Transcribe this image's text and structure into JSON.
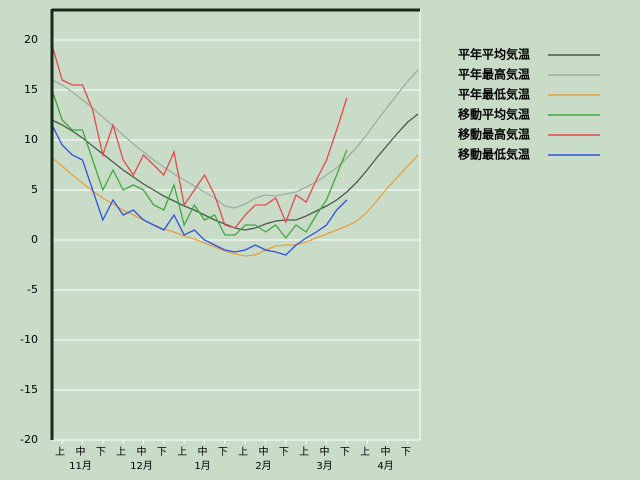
{
  "chart_data": {
    "type": "line",
    "x": [
      0,
      0.5,
      1,
      1.5,
      2,
      2.5,
      3,
      3.5,
      4,
      4.5,
      5,
      5.5,
      6,
      6.5,
      7,
      7.5,
      8,
      8.5,
      9,
      9.5,
      10,
      10.5,
      11,
      11.5,
      12,
      12.5,
      13,
      13.5,
      14,
      14.5,
      15,
      15.5,
      16,
      16.5,
      17,
      17.5,
      18
    ],
    "xlim": [
      0,
      18
    ],
    "xticks": [
      {
        "value": 0.5,
        "label": "上"
      },
      {
        "value": 1.5,
        "label": "中"
      },
      {
        "value": 2.5,
        "label": "下"
      },
      {
        "value": 3.5,
        "label": "上"
      },
      {
        "value": 4.5,
        "label": "中"
      },
      {
        "value": 5.5,
        "label": "下"
      },
      {
        "value": 6.5,
        "label": "上"
      },
      {
        "value": 7.5,
        "label": "中"
      },
      {
        "value": 8.5,
        "label": "下"
      },
      {
        "value": 9.5,
        "label": "上"
      },
      {
        "value": 10.5,
        "label": "中"
      },
      {
        "value": 11.5,
        "label": "下"
      },
      {
        "value": 12.5,
        "label": "上"
      },
      {
        "value": 13.5,
        "label": "中"
      },
      {
        "value": 14.5,
        "label": "下"
      },
      {
        "value": 15.5,
        "label": "上"
      },
      {
        "value": 16.5,
        "label": "中"
      },
      {
        "value": 17.5,
        "label": "下"
      }
    ],
    "month_labels": [
      {
        "value": 1.5,
        "label": "11月"
      },
      {
        "value": 4.5,
        "label": "12月"
      },
      {
        "value": 7.5,
        "label": "1月"
      },
      {
        "value": 10.5,
        "label": "2月"
      },
      {
        "value": 13.5,
        "label": "3月"
      },
      {
        "value": 16.5,
        "label": "4月"
      }
    ],
    "ylim": [
      -20,
      23
    ],
    "yticks": [
      -20,
      -15,
      -10,
      -5,
      0,
      5,
      10,
      15,
      20
    ],
    "grid": true,
    "legend": "right",
    "series": [
      {
        "name": "平年平均気温",
        "color": "#4a5a4a",
        "values": [
          12,
          11.5,
          10.9,
          10.2,
          9.4,
          8.6,
          7.8,
          7.0,
          6.3,
          5.6,
          5.0,
          4.4,
          3.9,
          3.4,
          3.0,
          2.5,
          2.0,
          1.6,
          1.2,
          1.0,
          1.2,
          1.6,
          1.9,
          2.0,
          2.0,
          2.4,
          2.9,
          3.4,
          4.0,
          4.8,
          5.8,
          7.0,
          8.3,
          9.5,
          10.7,
          11.8,
          12.6
        ]
      },
      {
        "name": "平年最高気温",
        "color": "#a0aca0",
        "values": [
          16,
          15.5,
          14.8,
          14,
          13.2,
          12.3,
          11.4,
          10.5,
          9.6,
          8.8,
          8,
          7.3,
          6.6,
          6,
          5.4,
          4.8,
          4.2,
          3.4,
          3.2,
          3.6,
          4.2,
          4.5,
          4.4,
          4.6,
          4.8,
          5.3,
          5.8,
          6.5,
          7.2,
          8.2,
          9.3,
          10.6,
          12,
          13.3,
          14.6,
          15.9,
          17
        ]
      },
      {
        "name": "平年最低気温",
        "color": "#e8a040",
        "values": [
          8.2,
          7.4,
          6.5,
          5.7,
          4.9,
          4.2,
          3.6,
          3.0,
          2.5,
          2.0,
          1.5,
          1.1,
          0.8,
          0.4,
          0.1,
          -0.3,
          -0.7,
          -1.1,
          -1.4,
          -1.6,
          -1.5,
          -1.0,
          -0.6,
          -0.5,
          -0.5,
          -0.2,
          0.2,
          0.6,
          1.0,
          1.4,
          1.9,
          2.8,
          4.0,
          5.2,
          6.3,
          7.4,
          8.5
        ]
      },
      {
        "name": "移動平均気温",
        "color": "#40a840",
        "values": [
          15,
          12,
          11,
          11,
          8,
          5,
          7,
          5,
          5.5,
          5,
          3.5,
          3,
          5.5,
          1.5,
          3.5,
          2,
          2.5,
          0.5,
          0.5,
          1.5,
          1.5,
          0.8,
          1.5,
          0.2,
          1.5,
          0.8,
          2.5,
          4,
          6.5,
          9,
          null,
          null,
          null,
          null,
          null,
          null,
          null
        ]
      },
      {
        "name": "移動最高気温",
        "color": "#e84848",
        "values": [
          19.5,
          16,
          15.5,
          15.5,
          13,
          8.5,
          11.5,
          8,
          6.5,
          8.5,
          7.5,
          6.5,
          8.8,
          3.5,
          5,
          6.5,
          4.5,
          1.5,
          1.2,
          2.5,
          3.5,
          3.5,
          4.2,
          1.8,
          4.5,
          3.8,
          6,
          8,
          11,
          14.2,
          null,
          null,
          null,
          null,
          null,
          null,
          null
        ]
      },
      {
        "name": "移動最低気温",
        "color": "#3050e0",
        "values": [
          11.5,
          9.5,
          8.5,
          8,
          5,
          2,
          4,
          2.5,
          3,
          2,
          1.5,
          1,
          2.5,
          0.5,
          1,
          0,
          -0.5,
          -1,
          -1.2,
          -1,
          -0.5,
          -1,
          -1.2,
          -1.5,
          -0.5,
          0.2,
          0.8,
          1.5,
          3,
          4,
          null,
          null,
          null,
          null,
          null,
          null,
          null
        ]
      }
    ]
  }
}
